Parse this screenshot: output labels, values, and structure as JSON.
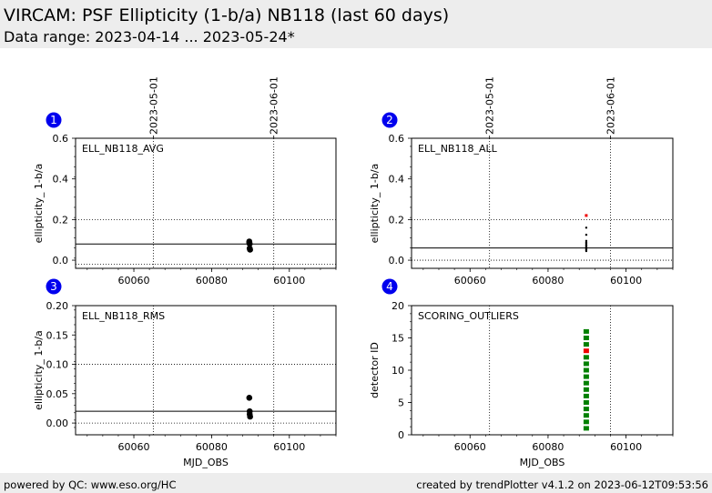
{
  "header": {
    "title": "VIRCAM: PSF Ellipticity (1-b/a) NB118 (last 60 days)",
    "subtitle": "Data range: 2023-04-14 ... 2023-05-24*"
  },
  "footer": {
    "left": "powered by QC: www.eso.org/HC",
    "right": "created by trendPlotter v4.1.2 on 2023-06-12T09:53:56"
  },
  "colors": {
    "badge": "#0000ee",
    "ok": "#008000",
    "outlier": "#ee0000",
    "point": "#000000"
  },
  "chart_data": [
    {
      "panel": "1",
      "type": "scatter",
      "title": "ELL_NB118_AVG",
      "xlabel": "",
      "ylabel": "ellipticity_ 1-b/a",
      "xlim": [
        60045,
        60112
      ],
      "ylim": [
        -0.04,
        0.6
      ],
      "yticks": [
        "0.0",
        "0.2",
        "0.4",
        "0.6"
      ],
      "ytick_values": [
        0.0,
        0.2,
        0.4,
        0.6
      ],
      "xticks": [
        "60060",
        "60080",
        "60100"
      ],
      "xtick_values": [
        60060,
        60080,
        60100
      ],
      "date_markers": [
        {
          "label": "2023-05-01",
          "x": 60065.0
        },
        {
          "label": "2023-06-01",
          "x": 60096.0
        }
      ],
      "hlines_dotted": [
        -0.02,
        0.2
      ],
      "hline_solid": 0.08,
      "points": [
        {
          "x": 60089.7,
          "y": 0.092
        },
        {
          "x": 60089.7,
          "y": 0.086
        },
        {
          "x": 60089.8,
          "y": 0.081
        },
        {
          "x": 60089.8,
          "y": 0.058
        },
        {
          "x": 60089.9,
          "y": 0.052
        }
      ]
    },
    {
      "panel": "2",
      "type": "scatter",
      "title": "ELL_NB118_ALL",
      "xlabel": "",
      "ylabel": "ellipticity_ 1-b/a",
      "xlim": [
        60045,
        60112
      ],
      "ylim": [
        -0.04,
        0.6
      ],
      "yticks": [
        "0.0",
        "0.2",
        "0.4",
        "0.6"
      ],
      "ytick_values": [
        0.0,
        0.2,
        0.4,
        0.6
      ],
      "xticks": [
        "60060",
        "60080",
        "60100"
      ],
      "xtick_values": [
        60060,
        60080,
        60100
      ],
      "date_markers": [
        {
          "label": "2023-05-01",
          "x": 60065.0
        },
        {
          "label": "2023-06-01",
          "x": 60096.0
        }
      ],
      "hlines_dotted": [
        0.0,
        0.2
      ],
      "hline_solid": 0.06,
      "outliers": [
        {
          "x": 60089.8,
          "y": 0.22
        }
      ],
      "points": [
        {
          "x": 60089.8,
          "y": 0.16
        },
        {
          "x": 60089.8,
          "y": 0.125
        },
        {
          "x": 60089.8,
          "y": 0.095
        },
        {
          "x": 60089.8,
          "y": 0.088
        },
        {
          "x": 60089.8,
          "y": 0.082
        },
        {
          "x": 60089.8,
          "y": 0.076
        },
        {
          "x": 60089.8,
          "y": 0.07
        },
        {
          "x": 60089.8,
          "y": 0.065
        },
        {
          "x": 60089.8,
          "y": 0.06
        },
        {
          "x": 60089.8,
          "y": 0.055
        },
        {
          "x": 60089.8,
          "y": 0.05
        },
        {
          "x": 60089.8,
          "y": 0.045
        }
      ]
    },
    {
      "panel": "3",
      "type": "scatter",
      "title": "ELL_NB118_RMS",
      "xlabel": "MJD_OBS",
      "ylabel": "ellipticity_ 1-b/a",
      "xlim": [
        60045,
        60112
      ],
      "ylim": [
        -0.02,
        0.2
      ],
      "yticks": [
        "0.00",
        "0.05",
        "0.10",
        "0.15",
        "0.20"
      ],
      "ytick_values": [
        0.0,
        0.05,
        0.1,
        0.15,
        0.2
      ],
      "xticks": [
        "60060",
        "60080",
        "60100"
      ],
      "xtick_values": [
        60060,
        60080,
        60100
      ],
      "date_markers": [
        {
          "label": "",
          "x": 60065.0
        },
        {
          "label": "",
          "x": 60096.0
        }
      ],
      "hlines_dotted": [
        0.0,
        0.1
      ],
      "hline_solid": 0.02,
      "points": [
        {
          "x": 60089.7,
          "y": 0.043
        },
        {
          "x": 60089.8,
          "y": 0.02
        },
        {
          "x": 60089.8,
          "y": 0.015
        },
        {
          "x": 60089.9,
          "y": 0.011
        }
      ]
    },
    {
      "panel": "4",
      "type": "scatter",
      "title": "SCORING_OUTLIERS",
      "xlabel": "MJD_OBS",
      "ylabel": "detector ID",
      "xlim": [
        60045,
        60112
      ],
      "ylim": [
        0,
        20
      ],
      "yticks": [
        "0",
        "5",
        "10",
        "15",
        "20"
      ],
      "ytick_values": [
        0,
        5,
        10,
        15,
        20
      ],
      "xticks": [
        "60060",
        "60080",
        "60100"
      ],
      "xtick_values": [
        60060,
        60080,
        60100
      ],
      "date_markers": [
        {
          "label": "",
          "x": 60065.0
        },
        {
          "label": "",
          "x": 60096.0
        }
      ],
      "hlines_dotted": [],
      "detector_x": 60089.8,
      "detectors_ok": [
        1,
        2,
        3,
        4,
        5,
        6,
        7,
        8,
        9,
        10,
        11,
        12,
        14,
        15,
        16
      ],
      "detectors_outlier": [
        13
      ]
    }
  ]
}
